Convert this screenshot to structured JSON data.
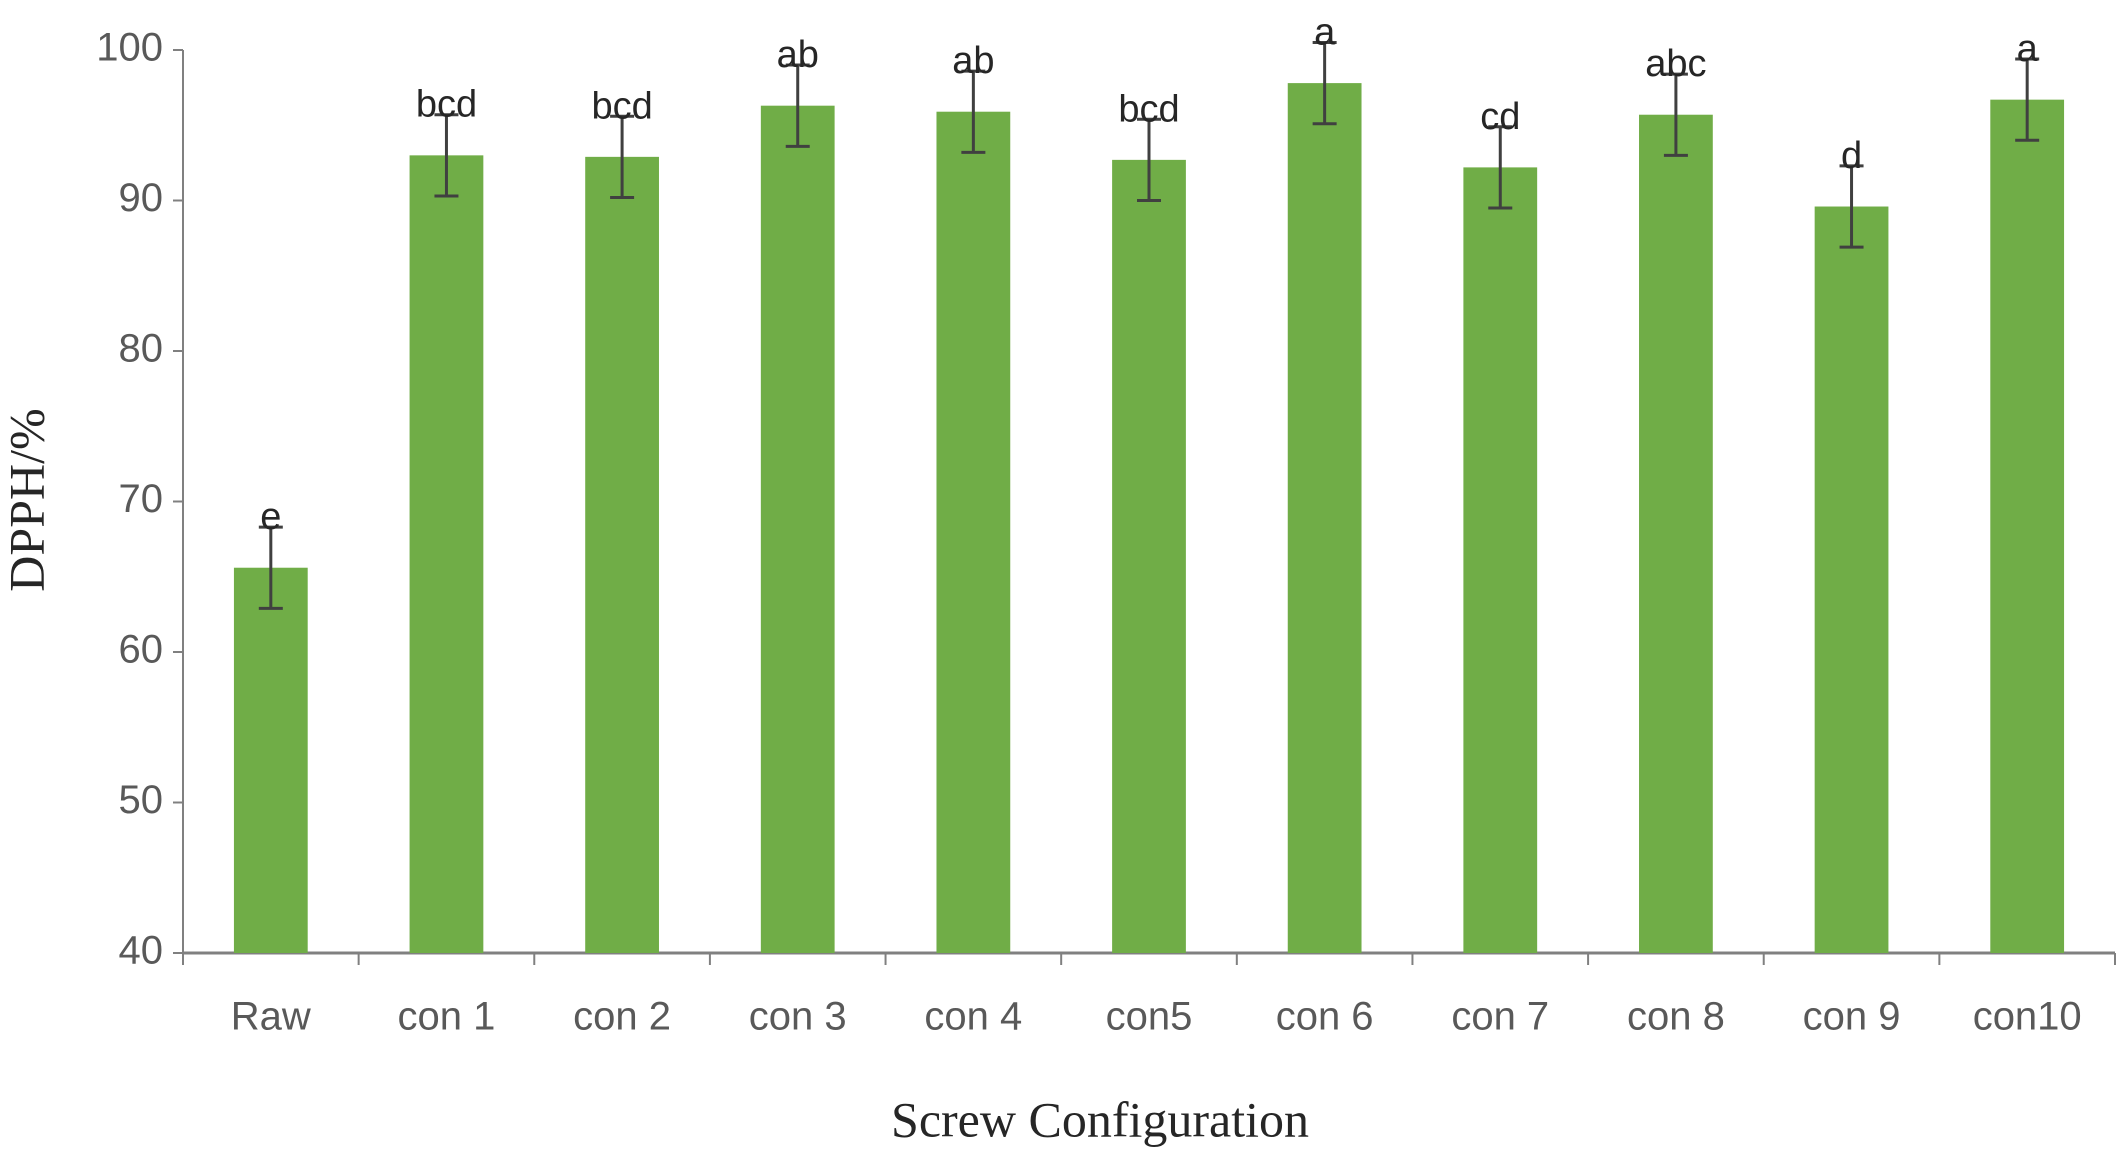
{
  "chart_data": {
    "type": "bar",
    "x_label": "Screw Configuration",
    "y_label": "DPPH/%",
    "categories": [
      "Raw",
      "con 1",
      "con 2",
      "con 3",
      "con 4",
      "con5",
      "con 6",
      "con 7",
      "con 8",
      "con 9",
      "con10"
    ],
    "values": [
      65.6,
      93.0,
      92.9,
      96.3,
      95.9,
      92.7,
      97.8,
      92.2,
      95.7,
      89.6,
      96.7
    ],
    "errors": [
      2.7,
      2.7,
      2.7,
      2.7,
      2.7,
      2.7,
      2.7,
      2.7,
      2.7,
      2.7,
      2.7
    ],
    "letters": [
      "e",
      "bcd",
      "bcd",
      "ab",
      "ab",
      "bcd",
      "a",
      "cd",
      "abc",
      "d",
      "a"
    ],
    "color": "#70ad47",
    "error_color": "#404040",
    "ylim": [
      40,
      100
    ],
    "yticks": [
      40,
      50,
      60,
      70,
      80,
      90,
      100
    ],
    "grid": false
  }
}
